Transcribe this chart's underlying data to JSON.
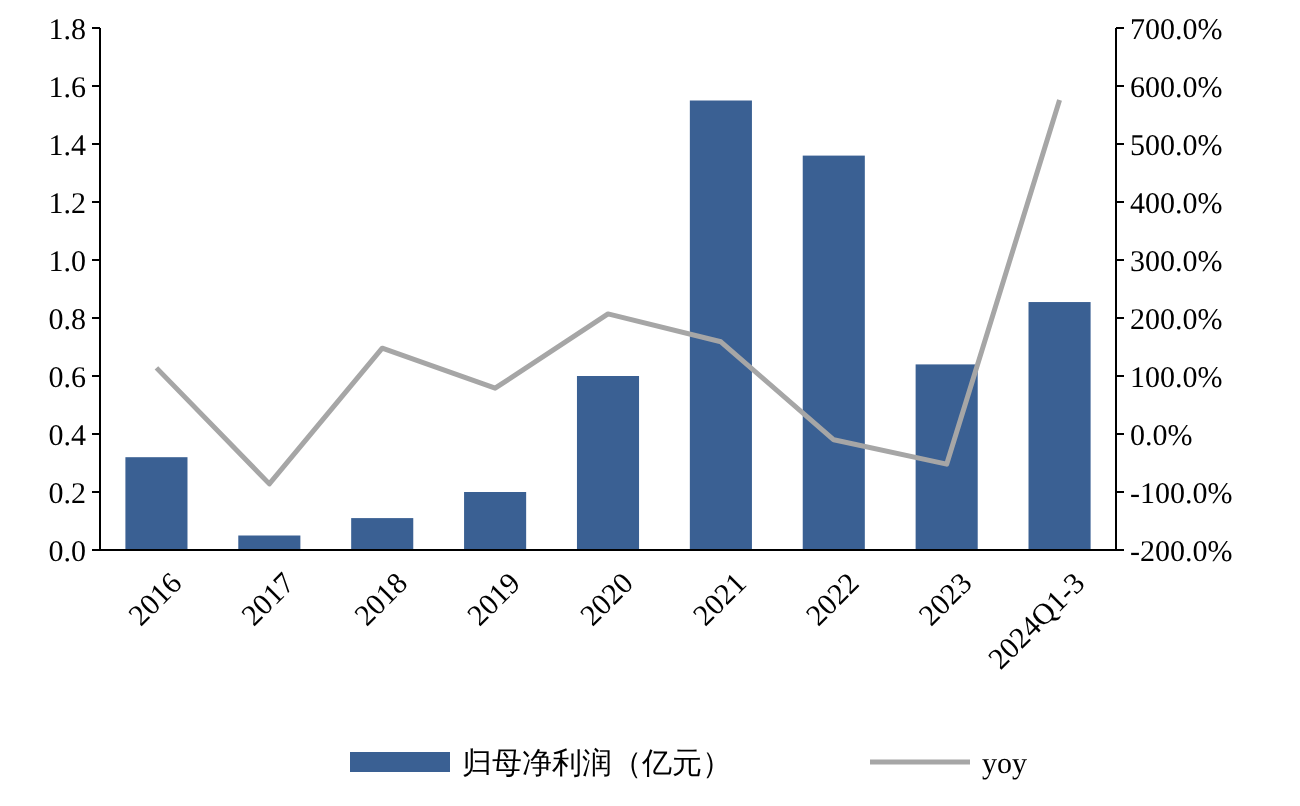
{
  "chart_data": {
    "type": "bar",
    "categories": [
      "2016",
      "2017",
      "2018",
      "2019",
      "2020",
      "2021",
      "2022",
      "2023",
      "2024Q1-3"
    ],
    "series": [
      {
        "name": "归母净利润（亿元）",
        "color": "#3a6093",
        "values": [
          0.32,
          0.05,
          0.11,
          0.2,
          0.6,
          1.55,
          1.36,
          0.64,
          0.855
        ]
      },
      {
        "name": "yoy",
        "type": "line",
        "axis": "y2",
        "color": "#a6a6a6",
        "values": [
          114,
          -86,
          148,
          79,
          207,
          159,
          -10,
          -52,
          576
        ]
      }
    ],
    "ylim": [
      0,
      1.8
    ],
    "yticks": [
      {
        "value": 0,
        "label": "0.0"
      },
      {
        "value": 0.2,
        "label": "0.2"
      },
      {
        "value": 0.4,
        "label": "0.4"
      },
      {
        "value": 0.6,
        "label": "0.6"
      },
      {
        "value": 0.8,
        "label": "0.8"
      },
      {
        "value": 1,
        "label": "1.0"
      },
      {
        "value": 1.2,
        "label": "1.2"
      },
      {
        "value": 1.4,
        "label": "1.4"
      },
      {
        "value": 1.6,
        "label": "1.6"
      },
      {
        "value": 1.8,
        "label": "1.8"
      }
    ],
    "y2lim": [
      -200,
      700
    ],
    "y2ticks": [
      {
        "value": -200,
        "label": "-200.0%"
      },
      {
        "value": -100,
        "label": "-100.0%"
      },
      {
        "value": 0,
        "label": "0.0%"
      },
      {
        "value": 100,
        "label": "100.0%"
      },
      {
        "value": 200,
        "label": "200.0%"
      },
      {
        "value": 300,
        "label": "300.0%"
      },
      {
        "value": 400,
        "label": "400.0%"
      },
      {
        "value": 500,
        "label": "500.0%"
      },
      {
        "value": 600,
        "label": "600.0%"
      },
      {
        "value": 700,
        "label": "700.0%"
      }
    ],
    "legend": "bottom",
    "grid": false,
    "marker": "none",
    "line_style": "solid"
  }
}
